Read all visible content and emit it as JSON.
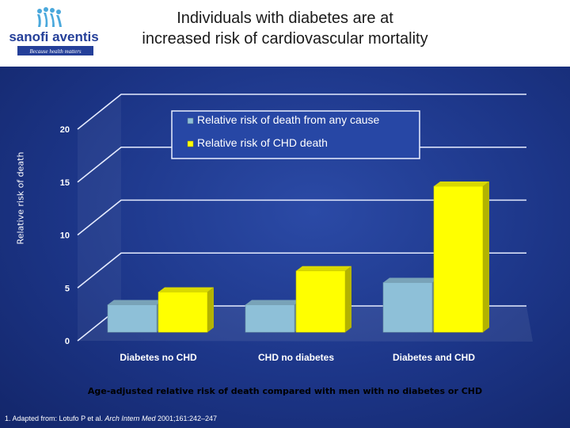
{
  "logo": {
    "brand": "sanofi aventis",
    "tagline": "Because health matters"
  },
  "title_line1": "Individuals with diabetes are at",
  "title_line2": "increased risk of cardiovascular mortality",
  "footnote": {
    "pre": "1. Adapted from: Lotufo P et al. ",
    "journal": "Arch Intern Med",
    "post": " 2001;161:242–247"
  },
  "colors": {
    "any_cause": "#8ec0d8",
    "chd": "#ffff00",
    "panel": "#1c3587"
  },
  "chart_data": {
    "type": "bar",
    "title": "",
    "xlabel": "Age-adjusted relative risk of death compared with men with no diabetes or CHD",
    "ylabel": "Relative risk of death",
    "ylim": [
      0,
      20
    ],
    "yticks": [
      "0",
      "5",
      "10",
      "15",
      "20"
    ],
    "categories": [
      "Diabetes no CHD",
      "CHD no diabetes",
      "Diabetes and CHD"
    ],
    "series": [
      {
        "name": "Relative risk of death from any cause",
        "values": [
          2.6,
          2.6,
          4.7
        ],
        "color": "#8ec0d8"
      },
      {
        "name": "Relative risk of CHD death",
        "values": [
          3.8,
          5.8,
          13.8
        ],
        "color": "#ffff00"
      }
    ],
    "grid": true,
    "legend_position": "top-right",
    "style": "3d"
  }
}
